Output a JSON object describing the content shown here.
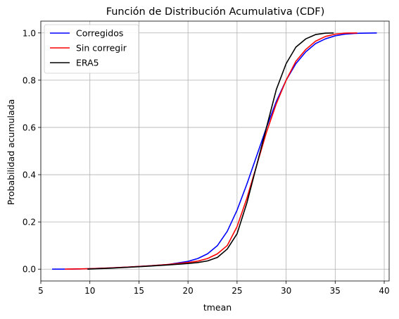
{
  "chart_data": {
    "type": "line",
    "title": "Función de Distribución Acumulativa (CDF)",
    "xlabel": "tmean",
    "ylabel": "Probabilidad acumulada",
    "xlim": [
      5,
      40.5
    ],
    "ylim": [
      -0.05,
      1.05
    ],
    "xticks": [
      5,
      10,
      15,
      20,
      25,
      30,
      35,
      40
    ],
    "yticks": [
      0.0,
      0.2,
      0.4,
      0.6,
      0.8,
      1.0
    ],
    "xtick_labels": [
      "5",
      "10",
      "15",
      "20",
      "25",
      "30",
      "35",
      "40"
    ],
    "ytick_labels": [
      "0.0",
      "0.2",
      "0.4",
      "0.6",
      "0.8",
      "1.0"
    ],
    "grid": true,
    "legend_position": "top-left",
    "series": [
      {
        "name": "Corregidos",
        "color": "#0000ff",
        "x": [
          6.2,
          8,
          10,
          12,
          14,
          16,
          18,
          20,
          21,
          22,
          23,
          24,
          25,
          26,
          27,
          28,
          29,
          30,
          31,
          32,
          33,
          34,
          35,
          36,
          37,
          38,
          39.2
        ],
        "y": [
          0.0,
          0.0,
          0.002,
          0.005,
          0.009,
          0.014,
          0.02,
          0.033,
          0.045,
          0.065,
          0.1,
          0.16,
          0.25,
          0.36,
          0.48,
          0.6,
          0.71,
          0.8,
          0.87,
          0.92,
          0.955,
          0.975,
          0.988,
          0.995,
          0.998,
          0.999,
          1.0
        ]
      },
      {
        "name": "Sin corregir",
        "color": "#ff0000",
        "x": [
          7.5,
          10,
          12,
          14,
          16,
          18,
          20,
          21,
          22,
          23,
          24,
          25,
          26,
          27,
          28,
          29,
          30,
          31,
          32,
          33,
          34,
          35,
          36,
          37.2
        ],
        "y": [
          0.0,
          0.002,
          0.005,
          0.009,
          0.014,
          0.02,
          0.028,
          0.034,
          0.045,
          0.065,
          0.1,
          0.18,
          0.3,
          0.44,
          0.58,
          0.7,
          0.8,
          0.88,
          0.93,
          0.965,
          0.985,
          0.995,
          0.999,
          1.0
        ]
      },
      {
        "name": "ERA5",
        "color": "#000000",
        "x": [
          9.8,
          12,
          14,
          16,
          18,
          20,
          21,
          22,
          23,
          24,
          25,
          26,
          27,
          28,
          29,
          30,
          31,
          32,
          33,
          34,
          34.8
        ],
        "y": [
          0.0,
          0.004,
          0.008,
          0.013,
          0.018,
          0.024,
          0.028,
          0.035,
          0.05,
          0.085,
          0.15,
          0.28,
          0.44,
          0.6,
          0.76,
          0.87,
          0.94,
          0.975,
          0.993,
          0.999,
          1.0
        ]
      }
    ]
  }
}
